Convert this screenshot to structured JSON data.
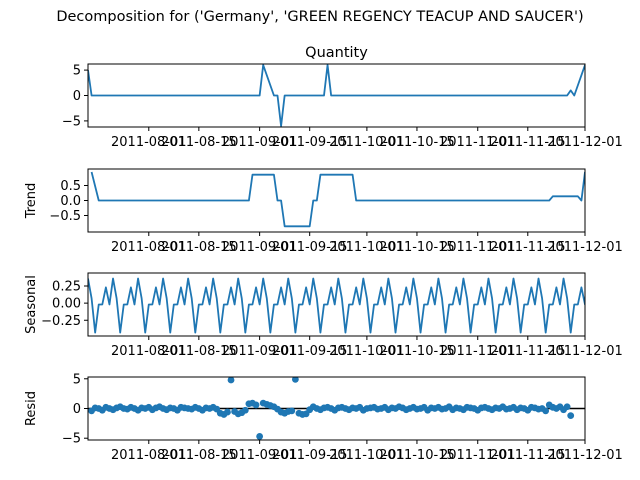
{
  "suptitle": "Decomposition for ('Germany', 'GREEN REGENCY TEACUP AND SAUCER')",
  "x_domain": [
    "2011-07-15",
    "2011-12-01"
  ],
  "x_ticks": [
    "2011-08-01",
    "2011-08-15",
    "2011-09-01",
    "2011-09-15",
    "2011-10-01",
    "2011-10-15",
    "2011-11-01",
    "2011-11-15",
    "2011-12-01"
  ],
  "colors": {
    "line": "#1f77b4",
    "axis": "#000000",
    "zero": "#000000"
  },
  "chart_data": [
    {
      "type": "line",
      "title": "Quantity",
      "ylabel": "",
      "ylim": [
        -6.2,
        6.2
      ],
      "yticks": [
        -5,
        0,
        5
      ],
      "x": [
        "2011-07-15",
        "2011-07-16",
        "2011-09-01",
        "2011-09-02",
        "2011-09-05",
        "2011-09-06",
        "2011-09-07",
        "2011-09-08",
        "2011-09-19",
        "2011-09-20",
        "2011-09-21",
        "2011-11-26",
        "2011-11-27",
        "2011-11-28",
        "2011-12-01"
      ],
      "y": [
        5,
        0,
        0,
        6,
        0,
        0,
        -6,
        0,
        0,
        6,
        0,
        0,
        1,
        0,
        6
      ]
    },
    {
      "type": "line",
      "title": "",
      "ylabel": "Trend",
      "ylim": [
        -1.05,
        1.05
      ],
      "yticks": [
        -0.5,
        0.0,
        0.5
      ],
      "ytick_labels": [
        "−0.5",
        "0.0",
        "0.5"
      ],
      "x": [
        "2011-07-16",
        "2011-07-18",
        "2011-08-29",
        "2011-08-30",
        "2011-09-05",
        "2011-09-06",
        "2011-09-07",
        "2011-09-08",
        "2011-09-15",
        "2011-09-16",
        "2011-09-17",
        "2011-09-18",
        "2011-09-19",
        "2011-09-20",
        "2011-09-27",
        "2011-09-28",
        "2011-11-21",
        "2011-11-22",
        "2011-11-29",
        "2011-11-30",
        "2011-12-01"
      ],
      "y": [
        0.95,
        0.0,
        0.0,
        0.86,
        0.86,
        0.0,
        0.0,
        -0.86,
        -0.86,
        0.0,
        0.0,
        0.86,
        0.86,
        0.86,
        0.86,
        0.0,
        0.0,
        0.14,
        0.14,
        0.0,
        0.95
      ]
    },
    {
      "type": "line",
      "title": "",
      "ylabel": "Seasonal",
      "ylim": [
        -0.48,
        0.44
      ],
      "yticks": [
        -0.25,
        0.0,
        0.25
      ],
      "ytick_labels": [
        "−0.25",
        "0.00",
        "0.25"
      ],
      "x_start": "2011-07-15",
      "step_days": 1,
      "pattern": [
        0.36,
        0.07,
        -0.43,
        -0.02,
        -0.02,
        0.23,
        -0.02,
        0.36,
        0.07,
        -0.43,
        -0.02,
        -0.02,
        0.23,
        -0.02
      ],
      "period": 7
    },
    {
      "type": "scatter",
      "title": "",
      "ylabel": "Resid",
      "ylim": [
        -5.3,
        5.3
      ],
      "yticks": [
        -5,
        0,
        5
      ],
      "zero_line": true,
      "x_start": "2011-07-16",
      "step_days": 1,
      "values": [
        -0.4,
        0.1,
        0.0,
        -0.3,
        0.2,
        0.0,
        -0.2,
        0.1,
        0.3,
        0.0,
        -0.1,
        0.2,
        0.0,
        -0.3,
        0.1,
        0.0,
        0.2,
        -0.2,
        0.1,
        0.3,
        0.0,
        -0.2,
        0.1,
        0.0,
        -0.3,
        0.2,
        0.1,
        0.0,
        -0.1,
        0.2,
        0.0,
        -0.3,
        0.1,
        0.0,
        0.2,
        -0.1,
        -0.8,
        -1.0,
        -0.6,
        4.8,
        -0.5,
        -0.9,
        -0.7,
        -0.3,
        0.8,
        0.9,
        0.6,
        -4.7,
        0.9,
        0.7,
        0.5,
        0.3,
        -0.1,
        -0.6,
        -0.8,
        -0.5,
        -0.4,
        4.9,
        -0.8,
        -1.0,
        -0.9,
        -0.2,
        0.3,
        0.0,
        -0.2,
        0.1,
        0.2,
        0.0,
        -0.3,
        0.1,
        0.2,
        0.0,
        -0.2,
        0.1,
        0.0,
        0.2,
        -0.3,
        0.0,
        0.1,
        0.2,
        -0.1,
        0.0,
        0.2,
        -0.2,
        0.1,
        0.0,
        0.3,
        0.1,
        -0.2,
        0.0,
        0.2,
        -0.1,
        0.0,
        0.2,
        -0.3,
        0.1,
        0.0,
        0.2,
        -0.1,
        0.0,
        0.3,
        -0.2,
        0.1,
        0.0,
        -0.2,
        0.2,
        0.1,
        0.0,
        -0.3,
        0.1,
        0.2,
        0.0,
        -0.2,
        0.1,
        0.0,
        0.3,
        -0.1,
        0.0,
        0.2,
        -0.2,
        0.1,
        0.0,
        -0.3,
        0.2,
        0.1,
        -0.1,
        0.0,
        -0.4,
        0.6,
        0.2,
        0.0,
        0.3,
        -0.2,
        0.3,
        -1.2
      ]
    }
  ]
}
